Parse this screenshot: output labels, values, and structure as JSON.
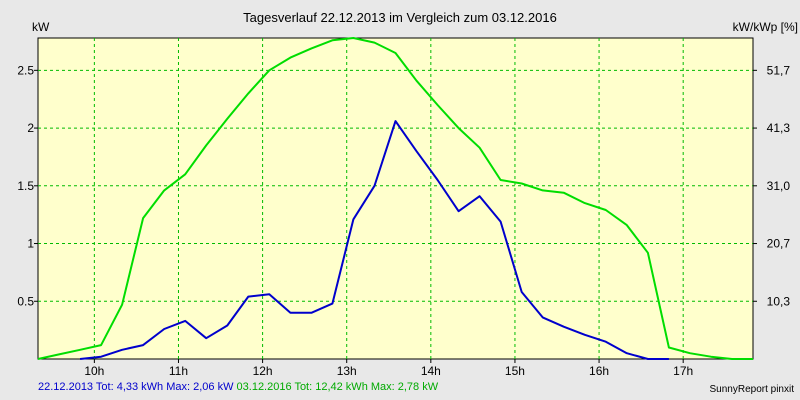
{
  "chart_data": {
    "type": "line",
    "title": "Tagesverlauf 22.12.2013 im Vergleich zum 03.12.2016",
    "ylabel_left": "kW",
    "ylabel_right": "kW/kWp [%]",
    "ylim": [
      0,
      2.78
    ],
    "y_ticks": [
      0.5,
      1,
      1.5,
      2,
      2.5
    ],
    "y_tick_labels": [
      "0.5",
      "1",
      "1.5",
      "2",
      "2.5"
    ],
    "y2_ticks": [
      0.5,
      1,
      1.5,
      2,
      2.5
    ],
    "y2_tick_labels": [
      "10,3",
      "20,7",
      "31,0",
      "41,3",
      "51,7"
    ],
    "xlim": [
      9.33,
      17.83
    ],
    "x_ticks": [
      10,
      11,
      12,
      13,
      14,
      15,
      16,
      17
    ],
    "x_tick_labels": [
      "10h",
      "11h",
      "12h",
      "13h",
      "14h",
      "15h",
      "16h",
      "17h"
    ],
    "grid": true,
    "colors": {
      "series_1": "#0000cc",
      "series_2": "#00dd00",
      "grid": "#00bb00",
      "plot_bg": "#ffffcc"
    },
    "series": [
      {
        "name": "22.12.2013",
        "x": [
          9.83,
          10.08,
          10.33,
          10.58,
          10.83,
          11.08,
          11.33,
          11.58,
          11.83,
          12.08,
          12.33,
          12.58,
          12.83,
          13.08,
          13.33,
          13.58,
          13.83,
          14.08,
          14.33,
          14.58,
          14.83,
          15.08,
          15.33,
          15.58,
          15.83,
          16.08,
          16.33,
          16.58,
          16.83
        ],
        "values": [
          0,
          0.02,
          0.08,
          0.12,
          0.26,
          0.33,
          0.18,
          0.29,
          0.54,
          0.56,
          0.4,
          0.4,
          0.48,
          1.21,
          1.5,
          2.06,
          1.8,
          1.55,
          1.28,
          1.41,
          1.19,
          0.58,
          0.36,
          0.28,
          0.21,
          0.15,
          0.05,
          0,
          0
        ]
      },
      {
        "name": "03.12.2016",
        "x": [
          9.33,
          9.58,
          9.83,
          10.08,
          10.33,
          10.58,
          10.83,
          11.08,
          11.33,
          11.58,
          11.83,
          12.08,
          12.33,
          12.58,
          12.83,
          13.08,
          13.33,
          13.58,
          13.83,
          14.08,
          14.33,
          14.58,
          14.83,
          15.08,
          15.33,
          15.58,
          15.83,
          16.08,
          16.33,
          16.58,
          16.83,
          17.08,
          17.33,
          17.58,
          17.83
        ],
        "values": [
          0,
          0.04,
          0.08,
          0.12,
          0.47,
          1.22,
          1.46,
          1.6,
          1.85,
          2.08,
          2.3,
          2.5,
          2.61,
          2.69,
          2.76,
          2.78,
          2.74,
          2.65,
          2.41,
          2.2,
          2.0,
          1.83,
          1.55,
          1.52,
          1.46,
          1.44,
          1.35,
          1.29,
          1.16,
          0.92,
          0.1,
          0.05,
          0.02,
          0,
          0
        ]
      }
    ]
  },
  "footer": {
    "series_1_summary": "22.12.2013 Tot: 4,33 kWh Max: 2,06 kW",
    "series_2_summary": "03.12.2016 Tot: 12,42 kWh Max: 2,78 kW",
    "credit": "SunnyReport pinxit"
  }
}
